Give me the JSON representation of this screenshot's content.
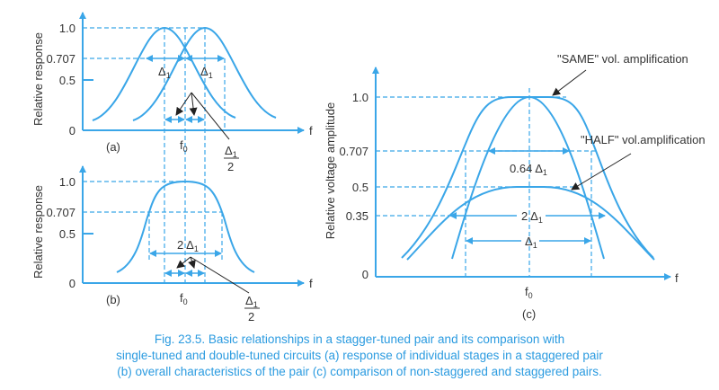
{
  "panel_a": {
    "ylabel": "Relative response",
    "ticks": [
      "1.0",
      "0.707",
      "0.5",
      "0"
    ],
    "xlabel": "f",
    "f0": "f",
    "f0_sub": "0",
    "delta_label": "Δ",
    "delta_sub": "1",
    "half_num": "Δ",
    "half_den": "2",
    "tag": "(a)"
  },
  "panel_b": {
    "ylabel": "Relative response",
    "ticks": [
      "1.0",
      "0.707",
      "0.5",
      "0"
    ],
    "xlabel": "f",
    "f0": "f",
    "f0_sub": "0",
    "bw_label": "2 Δ",
    "delta_sub": "1",
    "half_num": "Δ",
    "half_den": "2",
    "tag": "(b)"
  },
  "panel_c": {
    "ylabel": "Relative voltage amplitude",
    "ticks": [
      "1.0",
      "0.707",
      "0.5",
      "0.35",
      "0"
    ],
    "xlabel": "f",
    "f0": "f",
    "f0_sub": "0",
    "bw_064": "0.64 Δ",
    "bw_2": "2 Δ",
    "bw_1": "Δ",
    "delta_sub": "1",
    "same_label": "\"SAME\" vol. amplification",
    "half_label": "\"HALF\" vol.amplification",
    "tag": "(c)"
  },
  "caption": [
    "Fig. 23.5. Basic relationships in a stagger-tuned pair and its comparison with",
    "single-tuned and double-tuned circuits (a) response of individual stages in a staggered pair",
    "(b) overall characteristics of the pair (c) comparison of non-staggered and staggered pairs."
  ],
  "colors": {
    "accent": "#3aa6e8",
    "caption": "#2b9be0"
  }
}
